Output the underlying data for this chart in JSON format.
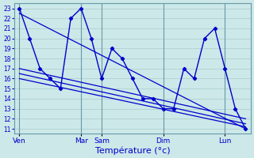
{
  "xlabel": "Température (°c)",
  "bg_color": "#cce8e8",
  "grid_color": "#aacccc",
  "line_color": "#0000cc",
  "spine_color": "#6699aa",
  "ylim": [
    10.5,
    23.5
  ],
  "yticks": [
    11,
    12,
    13,
    14,
    15,
    16,
    17,
    18,
    19,
    20,
    21,
    22,
    23
  ],
  "day_labels": [
    "Ven",
    "Mar",
    "Sam",
    "Dim",
    "Lun"
  ],
  "day_positions": [
    0,
    6,
    8,
    14,
    20
  ],
  "xlim": [
    -0.5,
    22.5
  ],
  "series_main": [
    23,
    20,
    17,
    16,
    15,
    22,
    23,
    20,
    16,
    19,
    18,
    16,
    14,
    14,
    13,
    13,
    17,
    16,
    20,
    21,
    17,
    13,
    11
  ],
  "trend_lines": [
    {
      "x0": 0,
      "y0": 22.5,
      "x1": 22,
      "y1": 11.0
    },
    {
      "x0": 0,
      "y0": 17.0,
      "x1": 22,
      "y1": 12.0
    },
    {
      "x0": 0,
      "y0": 16.5,
      "x1": 22,
      "y1": 11.5
    },
    {
      "x0": 0,
      "y0": 16.0,
      "x1": 22,
      "y1": 11.2
    }
  ]
}
